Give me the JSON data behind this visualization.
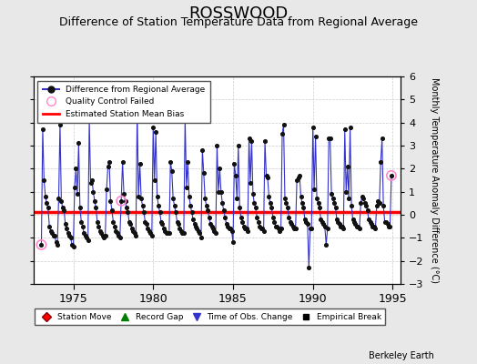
{
  "title": "ROSSWOOD",
  "subtitle": "Difference of Station Temperature Data from Regional Average",
  "ylabel_right": "Monthly Temperature Anomaly Difference (°C)",
  "xlim": [
    1972.5,
    1995.5
  ],
  "ylim": [
    -3,
    6
  ],
  "yticks": [
    -3,
    -2,
    -1,
    0,
    1,
    2,
    3,
    4,
    5,
    6
  ],
  "xticks": [
    1975,
    1980,
    1985,
    1990,
    1995
  ],
  "bias_value": 0.1,
  "background_color": "#e8e8e8",
  "plot_background": "#ffffff",
  "line_color": "#3333cc",
  "bias_color": "#ff0000",
  "dot_color": "#111111",
  "qc_fail_color": "#ff88cc",
  "title_fontsize": 13,
  "subtitle_fontsize": 9,
  "watermark": "Berkeley Earth",
  "data": [
    [
      1973.0,
      -1.3
    ],
    [
      1973.083,
      3.7
    ],
    [
      1973.167,
      1.5
    ],
    [
      1973.25,
      0.8
    ],
    [
      1973.333,
      0.5
    ],
    [
      1973.417,
      0.3
    ],
    [
      1973.5,
      -0.5
    ],
    [
      1973.583,
      -0.7
    ],
    [
      1973.667,
      -0.8
    ],
    [
      1973.75,
      -0.9
    ],
    [
      1973.833,
      -0.9
    ],
    [
      1973.917,
      -1.2
    ],
    [
      1974.0,
      -1.3
    ],
    [
      1974.083,
      0.7
    ],
    [
      1974.167,
      3.9
    ],
    [
      1974.25,
      0.6
    ],
    [
      1974.333,
      0.3
    ],
    [
      1974.417,
      0.2
    ],
    [
      1974.5,
      -0.4
    ],
    [
      1974.583,
      -0.6
    ],
    [
      1974.667,
      -0.8
    ],
    [
      1974.75,
      -0.9
    ],
    [
      1974.833,
      -1.0
    ],
    [
      1974.917,
      -1.3
    ],
    [
      1975.0,
      -1.4
    ],
    [
      1975.083,
      1.2
    ],
    [
      1975.167,
      2.0
    ],
    [
      1975.25,
      0.9
    ],
    [
      1975.333,
      3.1
    ],
    [
      1975.417,
      0.3
    ],
    [
      1975.5,
      -0.3
    ],
    [
      1975.583,
      -0.5
    ],
    [
      1975.667,
      -0.8
    ],
    [
      1975.75,
      -0.9
    ],
    [
      1975.833,
      -1.0
    ],
    [
      1975.917,
      -1.1
    ],
    [
      1976.0,
      4.1
    ],
    [
      1976.083,
      1.4
    ],
    [
      1976.167,
      1.5
    ],
    [
      1976.25,
      1.0
    ],
    [
      1976.333,
      0.6
    ],
    [
      1976.417,
      0.3
    ],
    [
      1976.5,
      -0.3
    ],
    [
      1976.583,
      -0.5
    ],
    [
      1976.667,
      -0.7
    ],
    [
      1976.75,
      -0.8
    ],
    [
      1976.833,
      -0.9
    ],
    [
      1976.917,
      -1.0
    ],
    [
      1977.0,
      -0.9
    ],
    [
      1977.083,
      1.1
    ],
    [
      1977.167,
      2.1
    ],
    [
      1977.25,
      2.3
    ],
    [
      1977.333,
      0.6
    ],
    [
      1977.417,
      0.2
    ],
    [
      1977.5,
      -0.3
    ],
    [
      1977.583,
      -0.5
    ],
    [
      1977.667,
      -0.7
    ],
    [
      1977.75,
      -0.8
    ],
    [
      1977.833,
      -0.9
    ],
    [
      1977.917,
      -1.0
    ],
    [
      1978.0,
      0.6
    ],
    [
      1978.083,
      2.3
    ],
    [
      1978.167,
      0.9
    ],
    [
      1978.25,
      0.6
    ],
    [
      1978.333,
      0.3
    ],
    [
      1978.417,
      0.1
    ],
    [
      1978.5,
      -0.3
    ],
    [
      1978.583,
      -0.4
    ],
    [
      1978.667,
      -0.6
    ],
    [
      1978.75,
      -0.7
    ],
    [
      1978.833,
      -0.8
    ],
    [
      1978.917,
      -0.9
    ],
    [
      1979.0,
      4.5
    ],
    [
      1979.083,
      0.8
    ],
    [
      1979.167,
      2.2
    ],
    [
      1979.25,
      0.7
    ],
    [
      1979.333,
      0.4
    ],
    [
      1979.417,
      0.1
    ],
    [
      1979.5,
      -0.3
    ],
    [
      1979.583,
      -0.4
    ],
    [
      1979.667,
      -0.6
    ],
    [
      1979.75,
      -0.7
    ],
    [
      1979.833,
      -0.8
    ],
    [
      1979.917,
      -0.9
    ],
    [
      1980.0,
      3.8
    ],
    [
      1980.083,
      1.5
    ],
    [
      1980.167,
      3.6
    ],
    [
      1980.25,
      0.8
    ],
    [
      1980.333,
      0.4
    ],
    [
      1980.417,
      0.1
    ],
    [
      1980.5,
      -0.3
    ],
    [
      1980.583,
      -0.4
    ],
    [
      1980.667,
      -0.6
    ],
    [
      1980.75,
      -0.7
    ],
    [
      1980.833,
      -0.8
    ],
    [
      1980.917,
      -0.8
    ],
    [
      1981.0,
      -0.8
    ],
    [
      1981.083,
      2.3
    ],
    [
      1981.167,
      1.9
    ],
    [
      1981.25,
      0.7
    ],
    [
      1981.333,
      0.4
    ],
    [
      1981.417,
      0.1
    ],
    [
      1981.5,
      -0.3
    ],
    [
      1981.583,
      -0.4
    ],
    [
      1981.667,
      -0.6
    ],
    [
      1981.75,
      -0.7
    ],
    [
      1981.833,
      -0.8
    ],
    [
      1981.917,
      -0.8
    ],
    [
      1982.0,
      4.2
    ],
    [
      1982.083,
      1.2
    ],
    [
      1982.167,
      2.3
    ],
    [
      1982.25,
      0.8
    ],
    [
      1982.333,
      0.4
    ],
    [
      1982.417,
      0.1
    ],
    [
      1982.5,
      -0.2
    ],
    [
      1982.583,
      -0.4
    ],
    [
      1982.667,
      -0.5
    ],
    [
      1982.75,
      -0.6
    ],
    [
      1982.833,
      -0.7
    ],
    [
      1982.917,
      -0.8
    ],
    [
      1983.0,
      -1.0
    ],
    [
      1983.083,
      2.8
    ],
    [
      1983.167,
      1.8
    ],
    [
      1983.25,
      0.7
    ],
    [
      1983.333,
      0.4
    ],
    [
      1983.417,
      0.2
    ],
    [
      1983.5,
      -0.1
    ],
    [
      1983.583,
      -0.4
    ],
    [
      1983.667,
      -0.5
    ],
    [
      1983.75,
      -0.6
    ],
    [
      1983.833,
      -0.7
    ],
    [
      1983.917,
      -0.8
    ],
    [
      1984.0,
      3.0
    ],
    [
      1984.083,
      1.0
    ],
    [
      1984.167,
      2.0
    ],
    [
      1984.25,
      1.0
    ],
    [
      1984.333,
      0.5
    ],
    [
      1984.417,
      0.2
    ],
    [
      1984.5,
      -0.1
    ],
    [
      1984.583,
      -0.4
    ],
    [
      1984.667,
      -0.5
    ],
    [
      1984.75,
      -0.6
    ],
    [
      1984.833,
      -0.6
    ],
    [
      1984.917,
      -0.7
    ],
    [
      1985.0,
      -1.2
    ],
    [
      1985.083,
      2.2
    ],
    [
      1985.167,
      1.7
    ],
    [
      1985.25,
      0.7
    ],
    [
      1985.333,
      3.0
    ],
    [
      1985.417,
      0.3
    ],
    [
      1985.5,
      -0.1
    ],
    [
      1985.583,
      -0.3
    ],
    [
      1985.667,
      -0.5
    ],
    [
      1985.75,
      -0.6
    ],
    [
      1985.833,
      -0.6
    ],
    [
      1985.917,
      -0.7
    ],
    [
      1986.0,
      3.3
    ],
    [
      1986.083,
      1.4
    ],
    [
      1986.167,
      3.2
    ],
    [
      1986.25,
      0.9
    ],
    [
      1986.333,
      0.5
    ],
    [
      1986.417,
      0.3
    ],
    [
      1986.5,
      -0.1
    ],
    [
      1986.583,
      -0.3
    ],
    [
      1986.667,
      -0.5
    ],
    [
      1986.75,
      -0.6
    ],
    [
      1986.833,
      -0.6
    ],
    [
      1986.917,
      -0.7
    ],
    [
      1987.0,
      3.2
    ],
    [
      1987.083,
      1.7
    ],
    [
      1987.167,
      1.6
    ],
    [
      1987.25,
      0.8
    ],
    [
      1987.333,
      0.5
    ],
    [
      1987.417,
      0.3
    ],
    [
      1987.5,
      -0.1
    ],
    [
      1987.583,
      -0.3
    ],
    [
      1987.667,
      -0.5
    ],
    [
      1987.75,
      -0.5
    ],
    [
      1987.833,
      -0.6
    ],
    [
      1987.917,
      -0.7
    ],
    [
      1988.0,
      -0.6
    ],
    [
      1988.083,
      3.5
    ],
    [
      1988.167,
      3.9
    ],
    [
      1988.25,
      0.7
    ],
    [
      1988.333,
      0.5
    ],
    [
      1988.417,
      0.3
    ],
    [
      1988.5,
      -0.1
    ],
    [
      1988.583,
      -0.3
    ],
    [
      1988.667,
      -0.4
    ],
    [
      1988.75,
      -0.5
    ],
    [
      1988.833,
      -0.6
    ],
    [
      1988.917,
      -0.6
    ],
    [
      1989.0,
      1.5
    ],
    [
      1989.083,
      1.6
    ],
    [
      1989.167,
      1.7
    ],
    [
      1989.25,
      0.8
    ],
    [
      1989.333,
      0.5
    ],
    [
      1989.417,
      0.3
    ],
    [
      1989.5,
      -0.2
    ],
    [
      1989.583,
      -0.3
    ],
    [
      1989.667,
      -0.4
    ],
    [
      1989.75,
      -2.3
    ],
    [
      1989.833,
      -0.6
    ],
    [
      1989.917,
      -0.6
    ],
    [
      1990.0,
      3.8
    ],
    [
      1990.083,
      1.1
    ],
    [
      1990.167,
      3.4
    ],
    [
      1990.25,
      0.7
    ],
    [
      1990.333,
      0.5
    ],
    [
      1990.417,
      0.3
    ],
    [
      1990.5,
      -0.2
    ],
    [
      1990.583,
      -0.3
    ],
    [
      1990.667,
      -0.4
    ],
    [
      1990.75,
      -0.5
    ],
    [
      1990.833,
      -1.3
    ],
    [
      1990.917,
      -0.6
    ],
    [
      1991.0,
      3.3
    ],
    [
      1991.083,
      3.3
    ],
    [
      1991.167,
      0.9
    ],
    [
      1991.25,
      0.7
    ],
    [
      1991.333,
      0.5
    ],
    [
      1991.417,
      0.3
    ],
    [
      1991.5,
      -0.2
    ],
    [
      1991.583,
      -0.3
    ],
    [
      1991.667,
      -0.4
    ],
    [
      1991.75,
      -0.5
    ],
    [
      1991.833,
      -0.5
    ],
    [
      1991.917,
      -0.6
    ],
    [
      1992.0,
      3.7
    ],
    [
      1992.083,
      1.0
    ],
    [
      1992.167,
      2.1
    ],
    [
      1992.25,
      0.7
    ],
    [
      1992.333,
      3.8
    ],
    [
      1992.417,
      0.4
    ],
    [
      1992.5,
      -0.2
    ],
    [
      1992.583,
      -0.3
    ],
    [
      1992.667,
      -0.4
    ],
    [
      1992.75,
      -0.5
    ],
    [
      1992.833,
      -0.5
    ],
    [
      1992.917,
      -0.6
    ],
    [
      1993.0,
      0.5
    ],
    [
      1993.083,
      0.8
    ],
    [
      1993.167,
      0.7
    ],
    [
      1993.25,
      0.5
    ],
    [
      1993.333,
      0.4
    ],
    [
      1993.417,
      0.2
    ],
    [
      1993.5,
      -0.2
    ],
    [
      1993.583,
      -0.3
    ],
    [
      1993.667,
      -0.4
    ],
    [
      1993.75,
      -0.5
    ],
    [
      1993.833,
      -0.5
    ],
    [
      1993.917,
      -0.6
    ],
    [
      1994.0,
      0.4
    ],
    [
      1994.083,
      0.6
    ],
    [
      1994.167,
      0.5
    ],
    [
      1994.25,
      2.3
    ],
    [
      1994.333,
      3.3
    ],
    [
      1994.417,
      0.4
    ],
    [
      1994.5,
      -0.3
    ],
    [
      1994.583,
      -0.3
    ],
    [
      1994.667,
      -0.4
    ],
    [
      1994.75,
      -0.5
    ],
    [
      1994.833,
      -0.5
    ],
    [
      1994.917,
      1.7
    ]
  ],
  "qc_fail_points": [
    [
      1973.0,
      -1.3
    ],
    [
      1978.0,
      0.6
    ],
    [
      1994.917,
      1.7
    ]
  ]
}
